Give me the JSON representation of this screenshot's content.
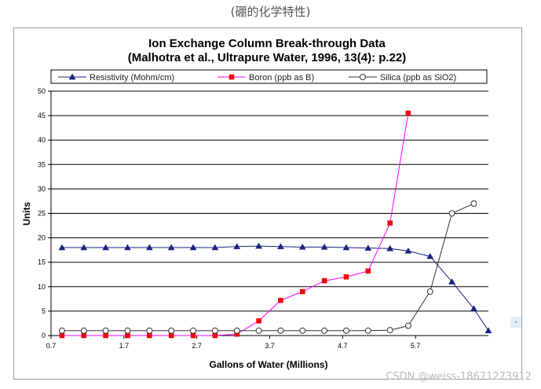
{
  "caption": "(硼的化学特性)",
  "watermark": "CSDN @weiss-18671273912",
  "chart_data": {
    "type": "line",
    "title": "Ion Exchange Column Break-through Data",
    "subtitle": "(Malhotra et al., Ultrapure Water, 1996, 13(4): p.22)",
    "xlabel": "Gallons of Water (Millions)",
    "ylabel": "Units",
    "xlim": [
      0.7,
      6.7
    ],
    "ylim": [
      0,
      50
    ],
    "xticks": [
      0.7,
      1.7,
      2.7,
      3.7,
      4.7,
      5.7
    ],
    "xtick_labels": [
      "0.7",
      "1.7",
      "2.7",
      "3.7",
      "4.7",
      "5.7"
    ],
    "yticks": [
      0,
      5,
      10,
      15,
      20,
      25,
      30,
      35,
      40,
      45,
      50
    ],
    "grid": true,
    "legend_position": "top",
    "series": [
      {
        "name": "Resistivity (Mohm/cm)",
        "color": "#1a237e",
        "marker": "triangle",
        "x": [
          0.85,
          1.15,
          1.45,
          1.75,
          2.05,
          2.35,
          2.65,
          2.95,
          3.25,
          3.55,
          3.85,
          4.15,
          4.45,
          4.75,
          5.05,
          5.35,
          5.6,
          5.9,
          6.2,
          6.5,
          6.7
        ],
        "y": [
          18,
          18,
          18,
          18,
          18,
          18,
          18,
          18,
          18.2,
          18.3,
          18.2,
          18.1,
          18.1,
          18.0,
          17.9,
          17.8,
          17.3,
          16.2,
          11.0,
          5.5,
          1.0
        ]
      },
      {
        "name": "Boron (ppb as B)",
        "color": "#ff00ff",
        "marker": "square",
        "x": [
          0.85,
          1.15,
          1.45,
          1.75,
          2.05,
          2.35,
          2.65,
          2.95,
          3.25,
          3.55,
          3.85,
          4.15,
          4.45,
          4.75,
          5.05,
          5.35,
          5.6
        ],
        "y": [
          0,
          0,
          0,
          0,
          0,
          0,
          0,
          0,
          0.3,
          3,
          7.2,
          9,
          11.2,
          12,
          13.2,
          23,
          45.5
        ]
      },
      {
        "name": "Silica (ppb as SiO2)",
        "color": "#333333",
        "marker": "circle",
        "x": [
          0.85,
          1.15,
          1.45,
          1.75,
          2.05,
          2.35,
          2.65,
          2.95,
          3.25,
          3.55,
          3.85,
          4.15,
          4.45,
          4.75,
          5.05,
          5.35,
          5.6,
          5.9,
          6.2,
          6.5
        ],
        "y": [
          1,
          1,
          1,
          1,
          1,
          1,
          1,
          1,
          1,
          1,
          1,
          1,
          1,
          1,
          1,
          1.1,
          2,
          9,
          25,
          27
        ]
      }
    ]
  }
}
